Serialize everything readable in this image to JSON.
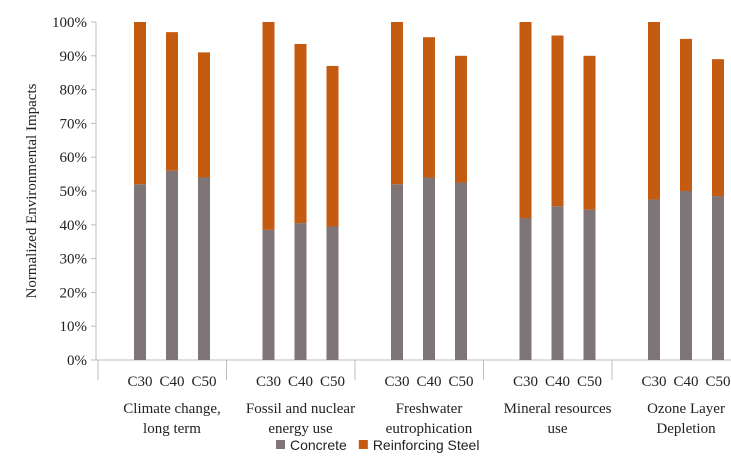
{
  "chart_data": {
    "type": "bar",
    "stacked": true,
    "ylabel": "Normalized Environmental Impacts",
    "ylim": [
      0,
      100
    ],
    "yticks": [
      "0%",
      "10%",
      "20%",
      "30%",
      "40%",
      "50%",
      "60%",
      "70%",
      "80%",
      "90%",
      "100%"
    ],
    "grid": false,
    "legend_position": "bottom",
    "groups": [
      {
        "label_lines": [
          "Climate change,",
          "long term"
        ],
        "categories": [
          "C30",
          "C40",
          "C50"
        ]
      },
      {
        "label_lines": [
          "Fossil and nuclear",
          "energy use"
        ],
        "categories": [
          "C30",
          "C40",
          "C50"
        ]
      },
      {
        "label_lines": [
          "Freshwater",
          "eutrophication"
        ],
        "categories": [
          "C30",
          "C40",
          "C50"
        ]
      },
      {
        "label_lines": [
          "Mineral resources",
          "use"
        ],
        "categories": [
          "C30",
          "C40",
          "C50"
        ]
      },
      {
        "label_lines": [
          "Ozone Layer",
          "Depletion"
        ],
        "categories": [
          "C30",
          "C40",
          "C50"
        ]
      }
    ],
    "series": [
      {
        "name": "Concrete",
        "color": "#7f7476",
        "values": [
          [
            52,
            56,
            54
          ],
          [
            38.5,
            40.5,
            39.5
          ],
          [
            52,
            54,
            52.5
          ],
          [
            42,
            45.5,
            44.5
          ],
          [
            47.5,
            50,
            48.5
          ]
        ]
      },
      {
        "name": "Reinforcing Steel",
        "color": "#c55a11",
        "values": [
          [
            48,
            41,
            37
          ],
          [
            61.5,
            53,
            47.5
          ],
          [
            48,
            41.5,
            37.5
          ],
          [
            58,
            50.5,
            45.5
          ],
          [
            52.5,
            45,
            40.5
          ]
        ]
      }
    ]
  }
}
